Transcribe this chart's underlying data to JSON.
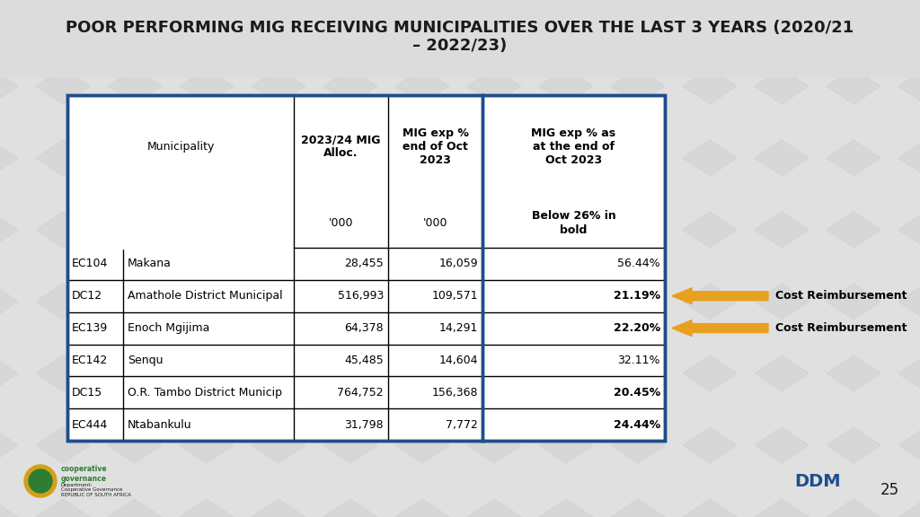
{
  "title": "POOR PERFORMING MIG RECEIVING MUNICIPALITIES OVER THE LAST 3 YEARS (2020/21\n– 2022/23)",
  "bg_color": "#e0e0e0",
  "title_color": "#1a1a1a",
  "title_fontsize": 13,
  "table_border_color": "#1f4e8c",
  "rows": [
    [
      "EC104",
      "Makana",
      "28,455",
      "16,059",
      "56.44%",
      false
    ],
    [
      "DC12",
      "Amathole District Municipal",
      "516,993",
      "109,571",
      "21.19%",
      true
    ],
    [
      "EC139",
      "Enoch Mgijima",
      "64,378",
      "14,291",
      "22.20%",
      true
    ],
    [
      "EC142",
      "Senqu",
      "45,485",
      "14,604",
      "32.11%",
      false
    ],
    [
      "DC15",
      "O.R. Tambo District Municip",
      "764,752",
      "156,368",
      "20.45%",
      true
    ],
    [
      "EC444",
      "Ntabankulu",
      "31,798",
      "7,772",
      "24.44%",
      true
    ]
  ],
  "arrow_rows": [
    1,
    2
  ],
  "arrow_label": "Cost Reimbursement",
  "arrow_color": "#e8a020",
  "page_num": "25"
}
